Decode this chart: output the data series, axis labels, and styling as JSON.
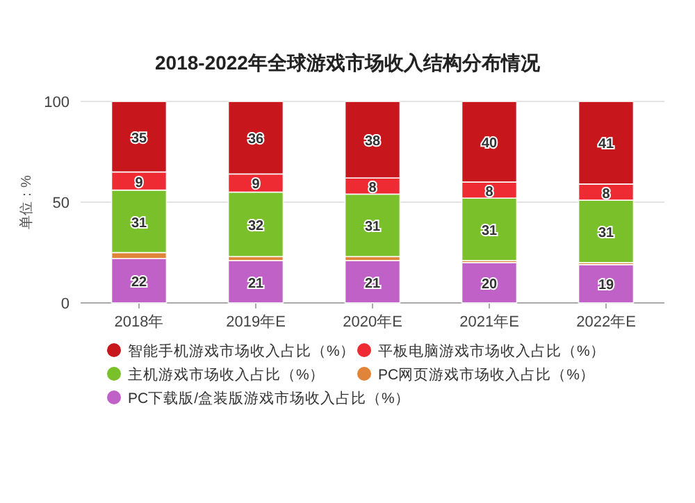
{
  "chart_data": {
    "type": "bar",
    "title": "2018-2022年全球游戏市场收入结构分布情况",
    "ylabel": "单位：%",
    "categories": [
      "2018年",
      "2019年E",
      "2020年E",
      "2021年E",
      "2022年E"
    ],
    "stacked": true,
    "ylim": [
      0,
      100
    ],
    "yticks": [
      0,
      50,
      100
    ],
    "grid": "y",
    "legend": "bottom",
    "series": [
      {
        "name": "PC下载版/盒装版游戏市场收入占比（%）",
        "color": "#c061c8",
        "values": [
          22,
          21,
          21,
          20,
          19
        ],
        "value_labels": [
          "22",
          "21",
          "21",
          "20",
          "19"
        ]
      },
      {
        "name": "PC网页游戏市场收入占比（%）",
        "color": "#e0843a",
        "values": [
          3,
          2,
          2,
          1,
          1
        ],
        "value_labels": [
          null,
          null,
          null,
          null,
          null
        ]
      },
      {
        "name": "主机游戏市场收入占比（%）",
        "color": "#7ac02a",
        "values": [
          31,
          32,
          31,
          31,
          31
        ],
        "value_labels": [
          "31",
          "32",
          "31",
          "31",
          "31"
        ]
      },
      {
        "name": "平板电脑游戏市场收入占比（%）",
        "color": "#ee2a33",
        "values": [
          9,
          9,
          8,
          8,
          8
        ],
        "value_labels": [
          "9",
          "9",
          "8",
          "8",
          "8"
        ]
      },
      {
        "name": "智能手机游戏市场收入占比（%）",
        "color": "#c8161d",
        "values": [
          35,
          36,
          38,
          40,
          41
        ],
        "value_labels": [
          "35",
          "36",
          "38",
          "40",
          "41"
        ]
      }
    ]
  }
}
